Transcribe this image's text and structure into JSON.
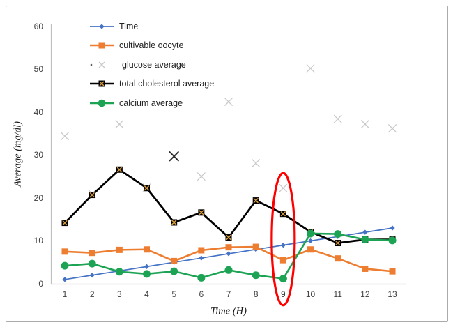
{
  "figure": {
    "background": "#ffffff",
    "border_color": "#ababab"
  },
  "axes": {
    "y_title": "Average (mg/dl)",
    "x_title": "Time (H)",
    "y_ticks": [
      0,
      10,
      20,
      30,
      40,
      50,
      60
    ],
    "x_ticks": [
      1,
      2,
      3,
      4,
      5,
      6,
      7,
      8,
      9,
      10,
      11,
      12,
      13
    ],
    "y_min": 0,
    "y_max": 60,
    "axis_line_color": "#c0c0c0"
  },
  "legend": {
    "items": [
      {
        "id": "time",
        "label": "Time",
        "marker": "line-diamond",
        "color": "#4472c4"
      },
      {
        "id": "cultivable-oocyte",
        "label": "cultivable oocyte",
        "marker": "line-square",
        "color": "#ed7d31"
      },
      {
        "id": "glucose-average",
        "label": "glucose average",
        "marker": "dot-x",
        "color": "#c9c9c9",
        "dot_color": "#595959"
      },
      {
        "id": "total-cholesterol-average",
        "label": "total cholesterol average",
        "marker": "line-xsquare",
        "color": "#000000",
        "fill": "#d79b3b"
      },
      {
        "id": "calcium-average",
        "label": "calcium average",
        "marker": "line-circle",
        "color": "#1ca454"
      }
    ]
  },
  "chart_data": {
    "type": "line",
    "x": [
      1,
      2,
      3,
      4,
      5,
      6,
      7,
      8,
      9,
      10,
      11,
      12,
      13
    ],
    "xlabel": "Time (H)",
    "ylabel": "Average (mg/dl)",
    "ylim": [
      0,
      60
    ],
    "grid": false,
    "legend_position": "inside-top-left",
    "series": [
      {
        "name": "Time",
        "color": "#4472c4",
        "marker": "diamond",
        "line_width": 1.7,
        "values": [
          1,
          2,
          3,
          4,
          5,
          6,
          7,
          8,
          9,
          10,
          11,
          12,
          13
        ]
      },
      {
        "name": "cultivable oocyte",
        "color": "#ed7d31",
        "marker": "square",
        "line_width": 2.6,
        "values": [
          7.5,
          7.2,
          7.9,
          8.0,
          5.3,
          7.8,
          8.5,
          8.6,
          5.5,
          8.0,
          5.9,
          3.5,
          2.9
        ]
      },
      {
        "name": "glucose average",
        "color": "#c9c9c9",
        "marker": "x",
        "line_width": 0,
        "scatter_only": true,
        "emphasis_index": 4,
        "emphasis_color": "#2e2e2e",
        "values": [
          34.4,
          21.0,
          37.2,
          22.4,
          29.7,
          25.0,
          42.4,
          28.1,
          22.3,
          50.2,
          38.4,
          37.2,
          36.2
        ]
      },
      {
        "name": "total cholesterol average",
        "color": "#000000",
        "marker": "x-square",
        "marker_fill": "#d79b3b",
        "line_width": 2.8,
        "values": [
          14.2,
          20.7,
          26.6,
          22.3,
          14.3,
          16.6,
          10.8,
          19.4,
          16.3,
          12.1,
          9.5,
          10.3,
          10.3
        ]
      },
      {
        "name": "calcium average",
        "color": "#1ca454",
        "marker": "circle",
        "line_width": 2.6,
        "values": [
          4.2,
          4.7,
          2.8,
          2.3,
          2.9,
          1.4,
          3.2,
          2.0,
          1.2,
          11.7,
          11.6,
          10.3,
          10.1
        ]
      }
    ],
    "annotation": {
      "shape": "ellipse",
      "color": "#ff0000",
      "stroke_width": 3.2,
      "x_value": 9,
      "value_top": 25.8,
      "value_bottom": -5.0,
      "meaning": "red ellipse highlighting all series at time 9"
    }
  }
}
